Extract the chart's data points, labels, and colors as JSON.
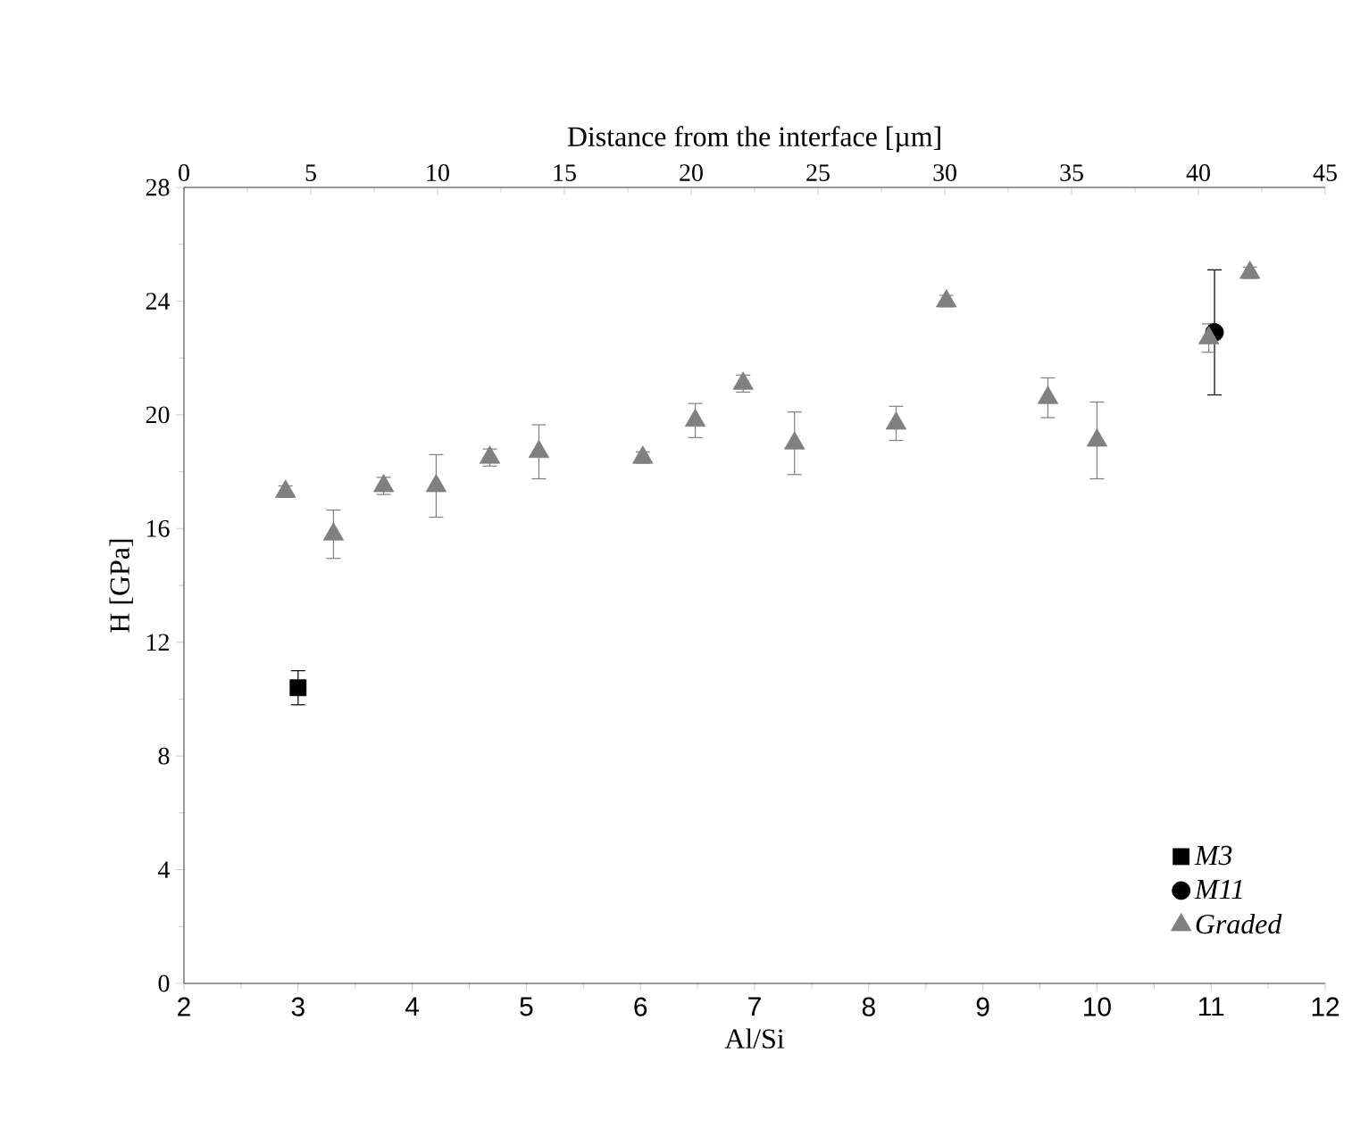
{
  "chart_data": {
    "type": "scatter",
    "xlabel": "Al/Si",
    "ylabel": "H [GPa]",
    "x2label": "Distance from the interface [µm]",
    "xlim": [
      2,
      12
    ],
    "xticks": [
      2,
      3,
      4,
      5,
      6,
      7,
      8,
      9,
      10,
      11,
      12
    ],
    "ylim": [
      0,
      28
    ],
    "yticks": [
      0,
      4,
      8,
      12,
      16,
      20,
      24,
      28
    ],
    "x2lim": [
      0,
      45
    ],
    "x2ticks": [
      0,
      5,
      10,
      15,
      20,
      25,
      30,
      35,
      40,
      45
    ],
    "legend": "bottom right",
    "series": [
      {
        "name": "M3",
        "color": "#000000",
        "marker": "square",
        "x": [
          3.0
        ],
        "values": [
          10.4
        ],
        "errors": [
          0.6
        ]
      },
      {
        "name": "M11",
        "color": "#000000",
        "marker": "circle",
        "x": [
          11.03
        ],
        "values": [
          22.9
        ],
        "errors": [
          2.2
        ]
      },
      {
        "name": "Graded",
        "color": "#808080",
        "marker": "triangle",
        "x": [
          2.89,
          3.31,
          3.75,
          4.21,
          4.68,
          5.11,
          6.02,
          6.48,
          6.9,
          7.35,
          8.24,
          8.68,
          9.57,
          10.0,
          10.98,
          11.34
        ],
        "values": [
          17.3,
          15.8,
          17.5,
          17.5,
          18.5,
          18.7,
          18.5,
          19.8,
          21.1,
          19.0,
          19.7,
          24.0,
          20.6,
          19.1,
          22.7,
          25.0
        ],
        "errors": [
          0.2,
          0.85,
          0.3,
          1.1,
          0.3,
          0.95,
          0.2,
          0.6,
          0.3,
          1.1,
          0.6,
          0.2,
          0.7,
          1.35,
          0.5,
          0.2
        ]
      }
    ]
  }
}
